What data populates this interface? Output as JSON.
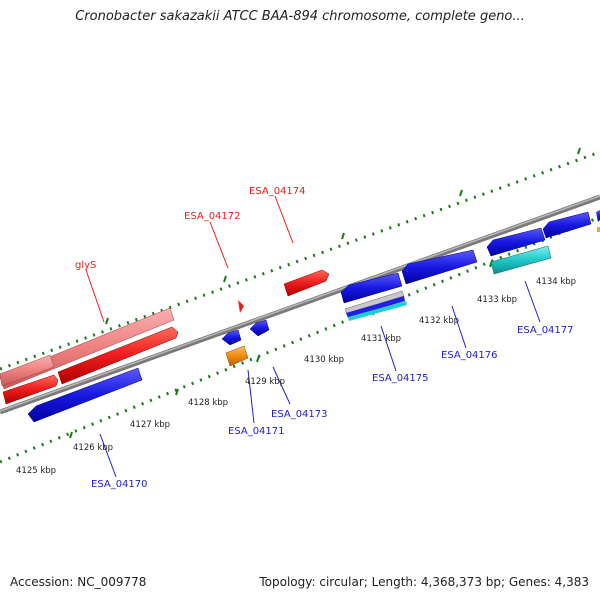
{
  "title": "Cronobacter sakazakii ATCC BAA-894 chromosome, complete geno...",
  "footer": {
    "accession": "Accession: NC_009778",
    "topology": "Topology: circular; Length: 4,368,373 bp; Genes: 4,383"
  },
  "scale_labels": [
    "4125 kbp",
    "4126 kbp",
    "4127 kbp",
    "4128 kbp",
    "4129 kbp",
    "4130 kbp",
    "4131 kbp",
    "4132 kbp",
    "4133 kbp",
    "4134 kbp"
  ],
  "forward_gene_labels": [
    "glyS",
    "ESA_04172",
    "ESA_04174"
  ],
  "reverse_gene_labels": [
    "ESA_04170",
    "ESA_04171",
    "ESA_04173",
    "ESA_04175",
    "ESA_04176",
    "ESA_04177"
  ],
  "colors": {
    "forward_cds": "#e8201e",
    "forward_cds_light": "#ef8080",
    "reverse_cds": "#2222dd",
    "backbone": "#909090",
    "tick": "#1a7a1a",
    "orange": "#f08c10",
    "cyan": "#20c8c8"
  }
}
